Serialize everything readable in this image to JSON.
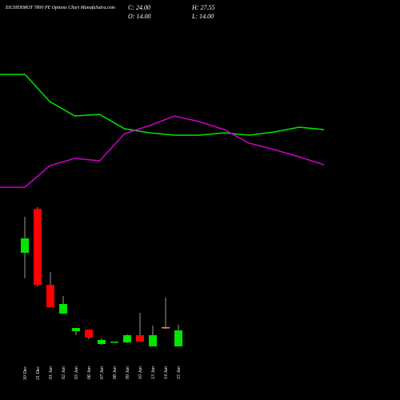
{
  "chart_data": [
    {
      "type": "candlestick",
      "title": "EICHERMOT 7800 PE Options Chart MunafaSutra.com",
      "info": [
        "C: 24.00",
        "H: 27.55",
        "O: 14.00",
        "L: 14.00"
      ],
      "categories": [
        "30 Dec",
        "31 Dec",
        "01 Jan",
        "02 Jan",
        "03 Jan",
        "06 Jan",
        "07 Jan",
        "08 Jan",
        "09 Jan",
        "10 Jan",
        "13 Jan",
        "14 Jan",
        "15 Jan"
      ],
      "open": [
        72.5,
        100,
        52.5,
        34.5,
        23.5,
        24.5,
        15.5,
        16.5,
        16.5,
        21,
        14,
        26,
        14
      ],
      "high": [
        95,
        101,
        60.5,
        45.5,
        25.5,
        24.5,
        19,
        17,
        21.5,
        35,
        27,
        44.5,
        27.55
      ],
      "low": [
        56.5,
        51.5,
        38.5,
        34.5,
        21,
        18.5,
        15,
        16.5,
        16,
        17,
        14,
        25,
        14
      ],
      "close": [
        81.5,
        52.5,
        38.5,
        40.5,
        25.5,
        19.5,
        18,
        17,
        21,
        17,
        21,
        26,
        24
      ],
      "ylim": [
        -19.5,
        105.5
      ],
      "colors": {
        "up": "#00e600",
        "down": "#ff0000",
        "flat": "#ff8c3c",
        "wick": "#999999"
      }
    },
    {
      "type": "line",
      "ylim": [
        0,
        200
      ],
      "series": [
        {
          "color": "#00e600",
          "values": [
            167,
            167,
            133,
            115,
            117,
            99,
            94,
            91,
            91,
            94,
            91,
            95,
            101,
            98
          ]
        },
        {
          "color": "#cc00cc",
          "values": [
            26,
            26,
            53,
            62,
            59,
            93,
            103,
            115,
            108,
            98,
            81,
            73,
            64,
            54
          ]
        }
      ]
    }
  ]
}
